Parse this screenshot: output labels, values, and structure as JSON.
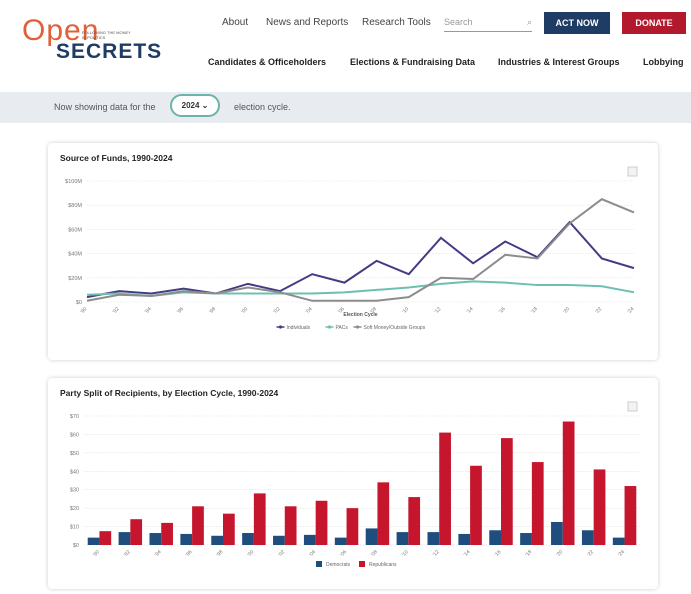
{
  "header": {
    "logo_top": "Open",
    "logo_tagline": "FOLLOWING THE MONEY IN POLITICS",
    "logo_bottom": "SECRETS",
    "top_nav": [
      "About",
      "News and Reports",
      "Research Tools"
    ],
    "search_placeholder": "Search",
    "act_now": "ACT NOW",
    "donate": "DONATE",
    "main_nav": [
      "Candidates & Officeholders",
      "Elections & Fundraising Data",
      "Industries & Interest Groups",
      "Lobbying"
    ]
  },
  "cycle_bar": {
    "prefix": "Now showing data for the",
    "cycle": "2024",
    "suffix": "election cycle."
  },
  "chart_data": [
    {
      "type": "line",
      "title": "Source of Funds, 1990-2024",
      "x_label": "Election Cycle",
      "categories": [
        "'90",
        "'92",
        "'94",
        "'96",
        "'98",
        "'00",
        "'02",
        "'04",
        "'06",
        "'08",
        "'10",
        "'12",
        "'14",
        "'16",
        "'18",
        "'20",
        "'22",
        "'24"
      ],
      "series": [
        {
          "name": "Individuals",
          "color": "#433c84",
          "values": [
            4,
            9,
            7,
            11,
            7,
            15,
            9,
            23,
            16,
            34,
            23,
            53,
            32,
            50,
            37,
            66,
            36,
            28
          ]
        },
        {
          "name": "PACs",
          "color": "#6cc0b0",
          "values": [
            6,
            7,
            5,
            8,
            7,
            7,
            7,
            7,
            8,
            10,
            12,
            15,
            17,
            16,
            14,
            14,
            13,
            8
          ]
        },
        {
          "name": "Soft Money/Outside Groups",
          "color": "#8c8c8c",
          "values": [
            1,
            6,
            5,
            9,
            7,
            12,
            8,
            1,
            1,
            1,
            4,
            20,
            19,
            39,
            36,
            65,
            85,
            74
          ]
        }
      ],
      "ylim": [
        0,
        100
      ],
      "yticks": [
        {
          "value": 0,
          "label": "$0"
        },
        {
          "value": 20,
          "label": "$20M"
        },
        {
          "value": 40,
          "label": "$40M"
        },
        {
          "value": 60,
          "label": "$60M"
        },
        {
          "value": 80,
          "label": "$80M"
        },
        {
          "value": 100,
          "label": "$100M"
        }
      ],
      "grid": true
    },
    {
      "type": "bar",
      "title": "Party Split of Recipients, by Election Cycle, 1990-2024",
      "categories": [
        "'90",
        "'92",
        "'94",
        "'96",
        "'98",
        "'00",
        "'02",
        "'04",
        "'06",
        "'08",
        "'10",
        "'12",
        "'14",
        "'16",
        "'18",
        "'20",
        "'22",
        "'24"
      ],
      "series": [
        {
          "name": "Democrats",
          "color": "#1f4e7e",
          "values": [
            4,
            7,
            6.5,
            6,
            5,
            6.5,
            5,
            5.5,
            4,
            9,
            7,
            7,
            6,
            8,
            6.5,
            12.5,
            8,
            4
          ]
        },
        {
          "name": "Republicans",
          "color": "#c5162e",
          "values": [
            7.5,
            14,
            12,
            21,
            17,
            28,
            21,
            24,
            20,
            34,
            26,
            61,
            43,
            58,
            45,
            67,
            41,
            32
          ]
        }
      ],
      "ylim": [
        0,
        70
      ],
      "yticks": [
        {
          "value": 0,
          "label": "$0"
        },
        {
          "value": 10,
          "label": "$10"
        },
        {
          "value": 20,
          "label": "$20"
        },
        {
          "value": 30,
          "label": "$30"
        },
        {
          "value": 40,
          "label": "$40"
        },
        {
          "value": 50,
          "label": "$50"
        },
        {
          "value": 60,
          "label": "$60"
        },
        {
          "value": 70,
          "label": "$70"
        }
      ],
      "grid": true
    }
  ]
}
